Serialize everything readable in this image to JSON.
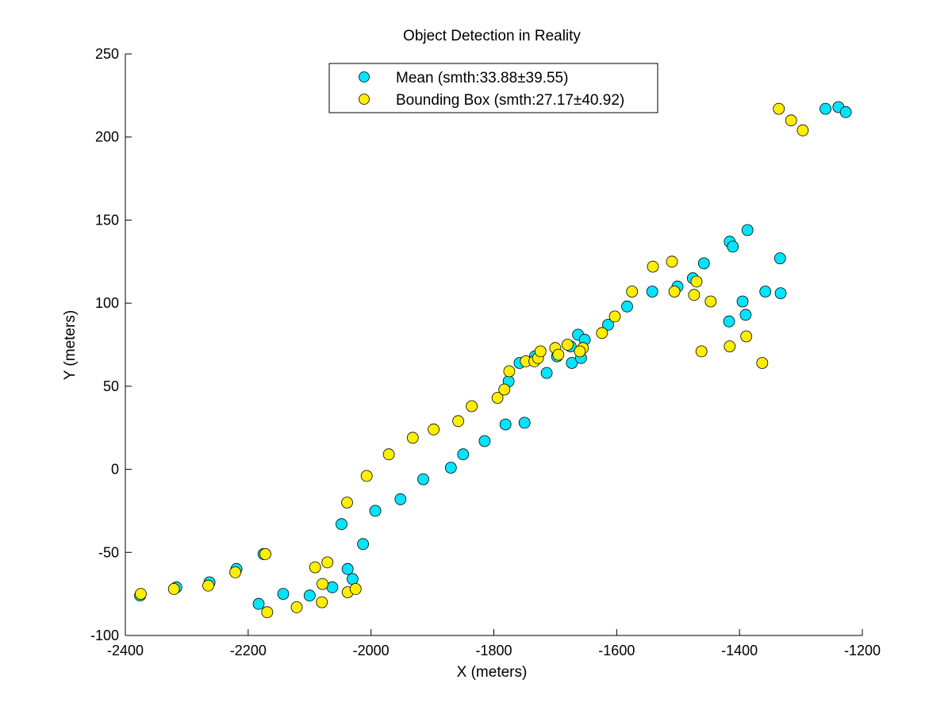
{
  "chart_data": {
    "type": "scatter",
    "title": "Object Detection in Reality",
    "xlabel": "X (meters)",
    "ylabel": "Y (meters)",
    "xlim": [
      -2400,
      -1200
    ],
    "ylim": [
      -100,
      250
    ],
    "xticks": [
      -2400,
      -2200,
      -2000,
      -1800,
      -1600,
      -1400,
      -1200
    ],
    "yticks": [
      -100,
      -50,
      0,
      50,
      100,
      150,
      200,
      250
    ],
    "xtick_labels": [
      "-2400",
      "-2200",
      "-2000",
      "-1800",
      "-1600",
      "-1400",
      "-1200"
    ],
    "ytick_labels": [
      "-100",
      "-50",
      "0",
      "50",
      "100",
      "150",
      "200",
      "250"
    ],
    "grid": false,
    "legend_position": "top-center",
    "series": [
      {
        "name": "Mean (smth:33.88±39.55)",
        "color": "#00e5ff",
        "points": [
          [
            -2376,
            -76
          ],
          [
            -2317,
            -71
          ],
          [
            -2263,
            -68
          ],
          [
            -2219,
            -60
          ],
          [
            -2175,
            -51
          ],
          [
            -2183,
            -81
          ],
          [
            -2143,
            -75
          ],
          [
            -2100,
            -76
          ],
          [
            -2063,
            -71
          ],
          [
            -2038,
            -60
          ],
          [
            -2030,
            -66
          ],
          [
            -2048,
            -33
          ],
          [
            -2013,
            -45
          ],
          [
            -1993,
            -25
          ],
          [
            -1952,
            -18
          ],
          [
            -1915,
            -6
          ],
          [
            -1870,
            1
          ],
          [
            -1850,
            9
          ],
          [
            -1815,
            17
          ],
          [
            -1781,
            27
          ],
          [
            -1750,
            28
          ],
          [
            -1776,
            53
          ],
          [
            -1758,
            64
          ],
          [
            -1733,
            68
          ],
          [
            -1714,
            58
          ],
          [
            -1697,
            68
          ],
          [
            -1675,
            74
          ],
          [
            -1663,
            81
          ],
          [
            -1673,
            64
          ],
          [
            -1658,
            67
          ],
          [
            -1652,
            78
          ],
          [
            -1614,
            87
          ],
          [
            -1583,
            98
          ],
          [
            -1542,
            107
          ],
          [
            -1501,
            110
          ],
          [
            -1476,
            115
          ],
          [
            -1458,
            124
          ],
          [
            -1416,
            137
          ],
          [
            -1411,
            134
          ],
          [
            -1387,
            144
          ],
          [
            -1417,
            89
          ],
          [
            -1395,
            101
          ],
          [
            -1390,
            93
          ],
          [
            -1358,
            107
          ],
          [
            -1334,
            127
          ],
          [
            -1333,
            106
          ],
          [
            -1260,
            217
          ],
          [
            -1239,
            218
          ],
          [
            -1227,
            215
          ]
        ]
      },
      {
        "name": "Bounding Box (smth:27.17±40.92)",
        "color": "#ffee00",
        "points": [
          [
            -2375,
            -75
          ],
          [
            -2321,
            -72
          ],
          [
            -2265,
            -70
          ],
          [
            -2221,
            -62
          ],
          [
            -2172,
            -51
          ],
          [
            -2169,
            -86
          ],
          [
            -2121,
            -83
          ],
          [
            -2080,
            -80
          ],
          [
            -2091,
            -59
          ],
          [
            -2071,
            -56
          ],
          [
            -2079,
            -69
          ],
          [
            -2038,
            -74
          ],
          [
            -2025,
            -72
          ],
          [
            -2039,
            -20
          ],
          [
            -2007,
            -4
          ],
          [
            -1971,
            9
          ],
          [
            -1932,
            19
          ],
          [
            -1898,
            24
          ],
          [
            -1858,
            29
          ],
          [
            -1836,
            38
          ],
          [
            -1794,
            43
          ],
          [
            -1783,
            48
          ],
          [
            -1775,
            59
          ],
          [
            -1748,
            65
          ],
          [
            -1734,
            65
          ],
          [
            -1728,
            67
          ],
          [
            -1724,
            71
          ],
          [
            -1700,
            73
          ],
          [
            -1695,
            69
          ],
          [
            -1680,
            75
          ],
          [
            -1655,
            73
          ],
          [
            -1660,
            71
          ],
          [
            -1624,
            82
          ],
          [
            -1603,
            92
          ],
          [
            -1575,
            107
          ],
          [
            -1541,
            122
          ],
          [
            -1510,
            125
          ],
          [
            -1506,
            107
          ],
          [
            -1474,
            105
          ],
          [
            -1470,
            113
          ],
          [
            -1462,
            71
          ],
          [
            -1447,
            101
          ],
          [
            -1416,
            74
          ],
          [
            -1389,
            80
          ],
          [
            -1363,
            64
          ],
          [
            -1336,
            217
          ],
          [
            -1316,
            210
          ],
          [
            -1297,
            204
          ]
        ]
      }
    ]
  }
}
